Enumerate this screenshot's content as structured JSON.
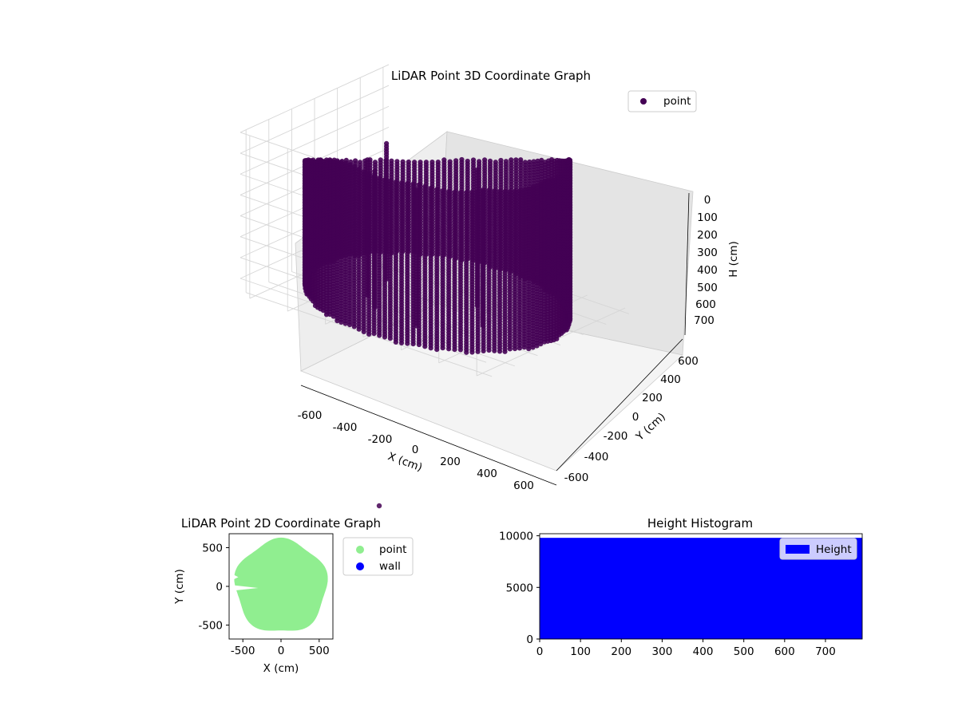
{
  "chart_data": [
    {
      "type": "scatter",
      "title": "LiDAR Point 3D Coordinate Graph",
      "xlabel": "X (cm)",
      "ylabel": "Y (cm)",
      "zlabel": "H (cm)",
      "xlim": [
        -650,
        650
      ],
      "ylim": [
        -650,
        650
      ],
      "zlim": [
        0,
        780
      ],
      "z_inverted": true,
      "x_ticks": [
        "-600",
        "-400",
        "-200",
        "0",
        "200",
        "400",
        "600"
      ],
      "y_ticks": [
        "-600",
        "-400",
        "-200",
        "0",
        "200",
        "400",
        "600"
      ],
      "z_ticks": [
        "0",
        "100",
        "200",
        "300",
        "400",
        "500",
        "600",
        "700"
      ],
      "grid": true,
      "legend_position": "top-right",
      "series": [
        {
          "name": "point",
          "color": "#440154"
        }
      ],
      "point_color": "#440154",
      "description_shape": "bowl of vertical point columns, radius about 600 cm, height 0-780 cm"
    },
    {
      "type": "scatter",
      "title": "LiDAR Point 2D Coordinate Graph",
      "xlabel": "X (cm)",
      "ylabel": "Y (cm)",
      "xlim": [
        -680,
        680
      ],
      "ylim": [
        -680,
        680
      ],
      "x_ticks": [
        "-500",
        "0",
        "500"
      ],
      "y_ticks": [
        "-500",
        "0",
        "500"
      ],
      "legend_position": "outside-right",
      "series": [
        {
          "name": "point",
          "color": "#90ee90"
        },
        {
          "name": "wall",
          "color": "#0000ff"
        }
      ]
    },
    {
      "type": "bar",
      "title": "Height Histogram",
      "xlim": [
        0,
        790
      ],
      "ylim": [
        0,
        10200
      ],
      "x_ticks": [
        "0",
        "100",
        "200",
        "300",
        "400",
        "500",
        "600",
        "700"
      ],
      "y_ticks": [
        "0",
        "5000",
        "10000"
      ],
      "legend_position": "top-right",
      "series": [
        {
          "name": "Height",
          "color": "#0000ff",
          "values": [
            9800
          ]
        }
      ],
      "bin_range": [
        0,
        790
      ]
    }
  ]
}
